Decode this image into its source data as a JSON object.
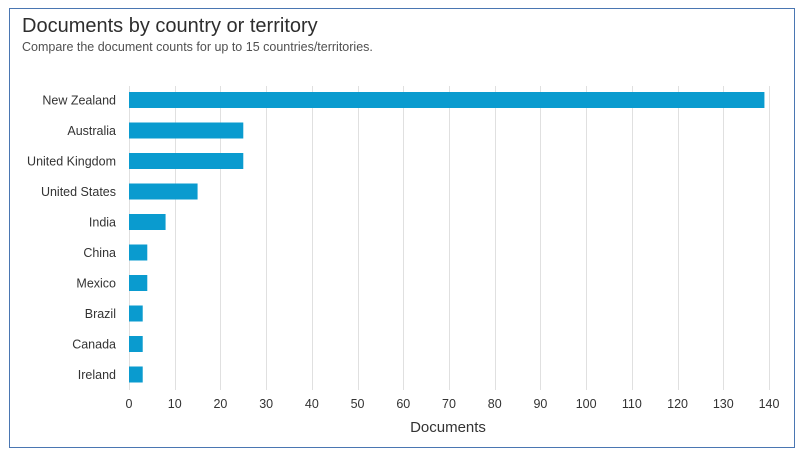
{
  "header": {
    "title": "Documents by country or territory",
    "subtitle": "Compare the document counts for up to 15 countries/territories."
  },
  "colors": {
    "bar": "#0a9bcf",
    "border": "#4a76b2",
    "grid": "#e0e0e0"
  },
  "chart_data": {
    "type": "bar",
    "orientation": "horizontal",
    "title": "Documents by country or territory",
    "subtitle": "Compare the document counts for up to 15 countries/territories.",
    "xlabel": "Documents",
    "ylabel": "",
    "categories": [
      "New Zealand",
      "Australia",
      "United Kingdom",
      "United States",
      "India",
      "China",
      "Mexico",
      "Brazil",
      "Canada",
      "Ireland"
    ],
    "values": [
      139,
      25,
      25,
      15,
      8,
      4,
      4,
      3,
      3,
      3
    ],
    "xlim": [
      0,
      140
    ],
    "ticks": [
      0,
      10,
      20,
      30,
      40,
      50,
      60,
      70,
      80,
      90,
      100,
      110,
      120,
      130,
      140
    ],
    "grid": true,
    "legend": "none"
  }
}
